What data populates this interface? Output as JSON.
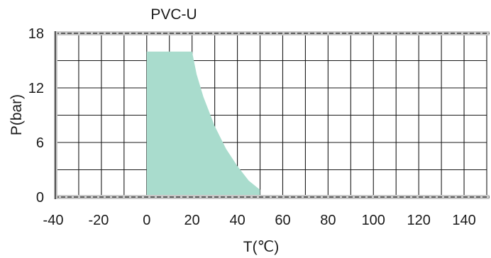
{
  "chart_data": {
    "type": "area",
    "title": "PVC-U",
    "xlabel": "T(℃)",
    "ylabel": "P(bar)",
    "xlim": [
      -40,
      150
    ],
    "ylim": [
      0,
      18
    ],
    "x_ticks": [
      -40,
      -20,
      0,
      20,
      40,
      60,
      80,
      100,
      120,
      140
    ],
    "y_ticks": [
      0,
      6,
      12,
      18
    ],
    "x_tick_labels": [
      "-40",
      "-20",
      "0",
      "20",
      "40",
      "60",
      "80",
      "100",
      "120",
      "140"
    ],
    "y_tick_labels": [
      "0",
      "6",
      "12",
      "18"
    ],
    "grid": true,
    "x_grid_step": 10,
    "y_grid_step": 3,
    "series": [
      {
        "x": [
          0,
          20,
          22,
          25,
          30,
          35,
          40,
          45,
          50,
          50,
          0
        ],
        "y": [
          16,
          16,
          13.5,
          11,
          7.8,
          5.3,
          3.4,
          1.8,
          0.8,
          0,
          0
        ]
      }
    ],
    "fill_color": "#a9dccd",
    "grid_color": "#1a1a1a"
  }
}
